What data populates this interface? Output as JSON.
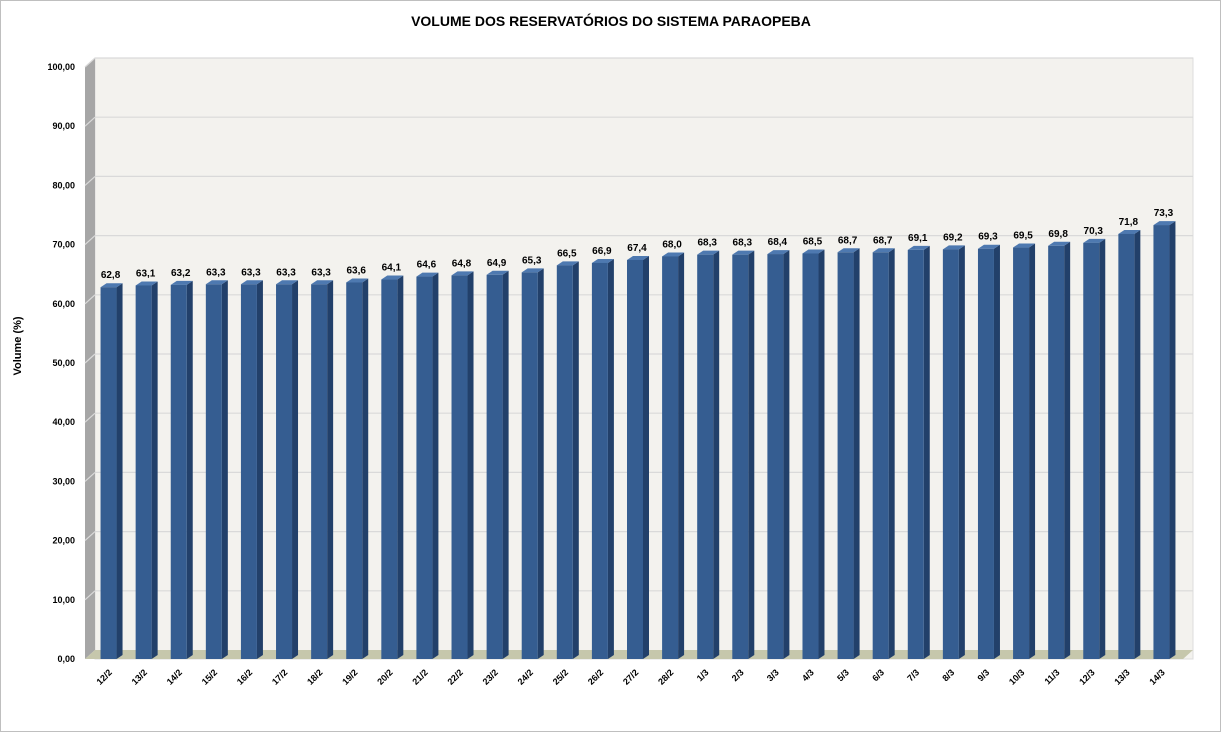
{
  "chart_data": {
    "type": "bar",
    "title": "VOLUME DOS RESERVATÓRIOS DO SISTEMA PARAOPEBA",
    "xlabel": "",
    "ylabel": "Volume (%)",
    "ylim": [
      0,
      100
    ],
    "yticks": [
      "0,00",
      "10,00",
      "20,00",
      "30,00",
      "40,00",
      "50,00",
      "60,00",
      "70,00",
      "80,00",
      "90,00",
      "100,00"
    ],
    "grid": true,
    "legend": "none",
    "categories": [
      "12/2",
      "13/2",
      "14/2",
      "15/2",
      "16/2",
      "17/2",
      "18/2",
      "19/2",
      "20/2",
      "21/2",
      "22/2",
      "23/2",
      "24/2",
      "25/2",
      "26/2",
      "27/2",
      "28/2",
      "1/3",
      "2/3",
      "3/3",
      "4/3",
      "5/3",
      "6/3",
      "7/3",
      "8/3",
      "9/3",
      "10/3",
      "11/3",
      "12/3",
      "13/3",
      "14/3"
    ],
    "values": [
      62.8,
      63.1,
      63.2,
      63.3,
      63.3,
      63.3,
      63.3,
      63.6,
      64.1,
      64.6,
      64.8,
      64.9,
      65.3,
      66.5,
      66.9,
      67.4,
      68.0,
      68.3,
      68.3,
      68.4,
      68.5,
      68.7,
      68.7,
      69.1,
      69.2,
      69.3,
      69.5,
      69.8,
      70.3,
      71.8,
      73.3
    ],
    "value_labels": [
      "62,8",
      "63,1",
      "63,2",
      "63,3",
      "63,3",
      "63,3",
      "63,3",
      "63,6",
      "64,1",
      "64,6",
      "64,8",
      "64,9",
      "65,3",
      "66,5",
      "66,9",
      "67,4",
      "68,0",
      "68,3",
      "68,3",
      "68,4",
      "68,5",
      "68,7",
      "68,7",
      "69,1",
      "69,2",
      "69,3",
      "69,5",
      "69,8",
      "70,3",
      "71,8",
      "73,3"
    ],
    "colors": {
      "bar_front": "#355d91",
      "bar_side": "#22406a",
      "bar_top": "#4e79b0",
      "plot_back": "#f3f2ee",
      "plot_side": "#a6a6a6",
      "floor": "#c6c7ac",
      "grid": "#d9d9d9"
    }
  }
}
